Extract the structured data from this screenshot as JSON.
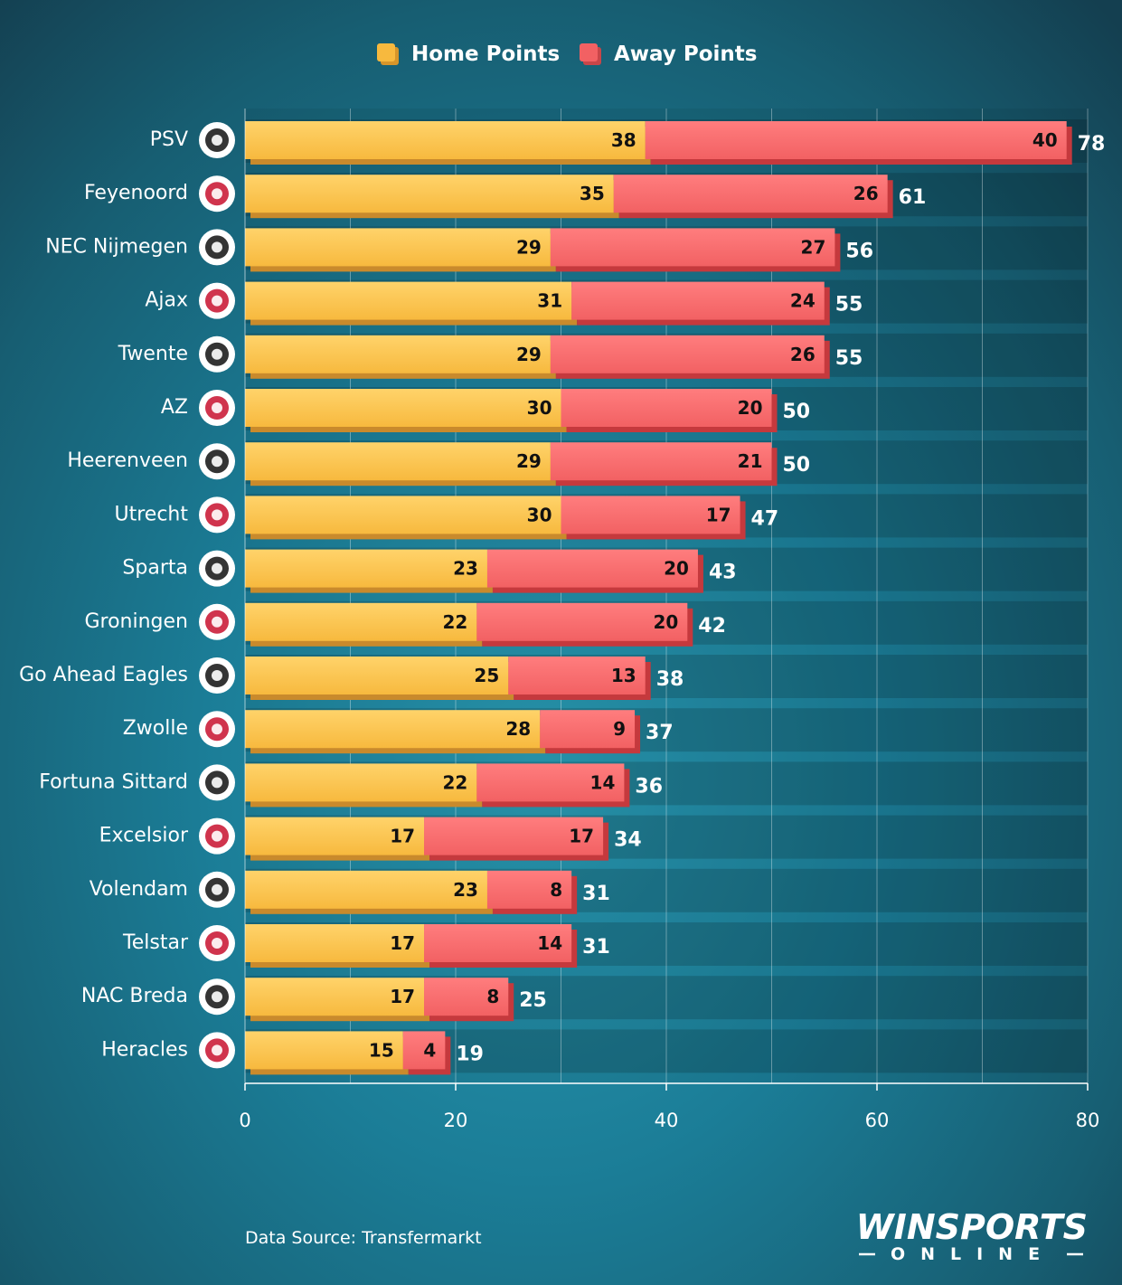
{
  "chart_data": {
    "type": "bar",
    "orientation": "horizontal",
    "stacked": true,
    "categories": [
      "PSV",
      "Feyenoord",
      "NEC Nijmegen",
      "Ajax",
      "Twente",
      "AZ",
      "Heerenveen",
      "Utrecht",
      "Sparta",
      "Groningen",
      "Go Ahead Eagles",
      "Zwolle",
      "Fortuna Sittard",
      "Excelsior",
      "Volendam",
      "Telstar",
      "NAC Breda",
      "Heracles"
    ],
    "series": [
      {
        "name": "Home Points",
        "color": "#f7b93e",
        "values": [
          38,
          35,
          29,
          31,
          29,
          30,
          29,
          30,
          23,
          22,
          25,
          28,
          22,
          17,
          23,
          17,
          17,
          15
        ]
      },
      {
        "name": "Away Points",
        "color": "#f26163",
        "values": [
          40,
          26,
          27,
          24,
          26,
          20,
          21,
          17,
          20,
          20,
          13,
          9,
          14,
          17,
          8,
          14,
          8,
          4
        ]
      }
    ],
    "totals": [
      78,
      61,
      56,
      55,
      55,
      50,
      50,
      47,
      43,
      42,
      38,
      37,
      36,
      34,
      31,
      31,
      25,
      19
    ],
    "xlim": [
      0,
      80
    ],
    "xticks": [
      0,
      20,
      40,
      60,
      80
    ],
    "grid": true,
    "legend_position": "top-center"
  },
  "team_logos": [
    "psv-crest",
    "feyenoord-crest",
    "nec-crest",
    "ajax-crest",
    "twente-crest",
    "az-crest",
    "heerenveen-crest",
    "utrecht-crest",
    "sparta-crest",
    "groningen-crest",
    "go-ahead-eagles-crest",
    "zwolle-crest",
    "fortuna-sittard-crest",
    "excelsior-crest",
    "volendam-crest",
    "telstar-crest",
    "nac-breda-crest",
    "heracles-crest"
  ],
  "footer": {
    "source": "Data Source: Transfermarkt",
    "brand": "WINSPORTS",
    "brand_sub": "ONLINE"
  }
}
